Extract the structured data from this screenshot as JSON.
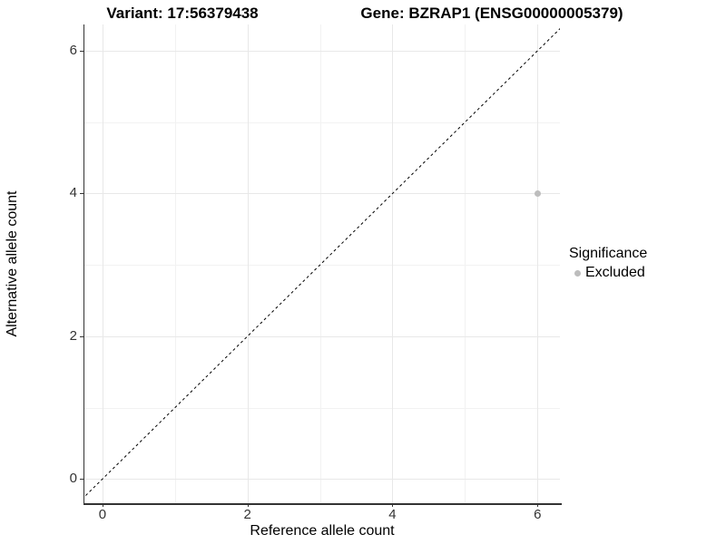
{
  "titles": {
    "left": "Variant: 17:56379438",
    "right": "Gene: BZRAP1 (ENSG00000005379)"
  },
  "chart_data": {
    "type": "scatter",
    "title_left": "Variant: 17:56379438",
    "title_right": "Gene: BZRAP1 (ENSG00000005379)",
    "xlabel": "Reference allele count",
    "ylabel": "Alternative allele count",
    "xlim": [
      -0.25,
      6.31
    ],
    "ylim": [
      -0.34,
      6.37
    ],
    "xticks": [
      0,
      2,
      4,
      6
    ],
    "yticks": [
      0,
      2,
      4,
      6
    ],
    "x_minor_ticks": [
      1,
      3,
      5
    ],
    "y_minor_ticks": [
      1,
      3,
      5
    ],
    "grid": "on",
    "points": [
      {
        "x": 6,
        "y": 4,
        "series": "Excluded"
      }
    ],
    "identity_line": {
      "type": "dashed",
      "slope": 1,
      "intercept": 0
    },
    "legend": {
      "position": "right",
      "title": "Significance",
      "items": [
        {
          "label": "Excluded",
          "color": "#bdbdbd"
        }
      ]
    },
    "colors": {
      "point_excluded": "#bdbdbd",
      "axis_line": "#333333",
      "tick_label": "#333333",
      "grid_major": "#e8e8e8",
      "grid_minor": "#f2f2f2",
      "dashed_line": "#000000",
      "background": "#ffffff"
    }
  }
}
